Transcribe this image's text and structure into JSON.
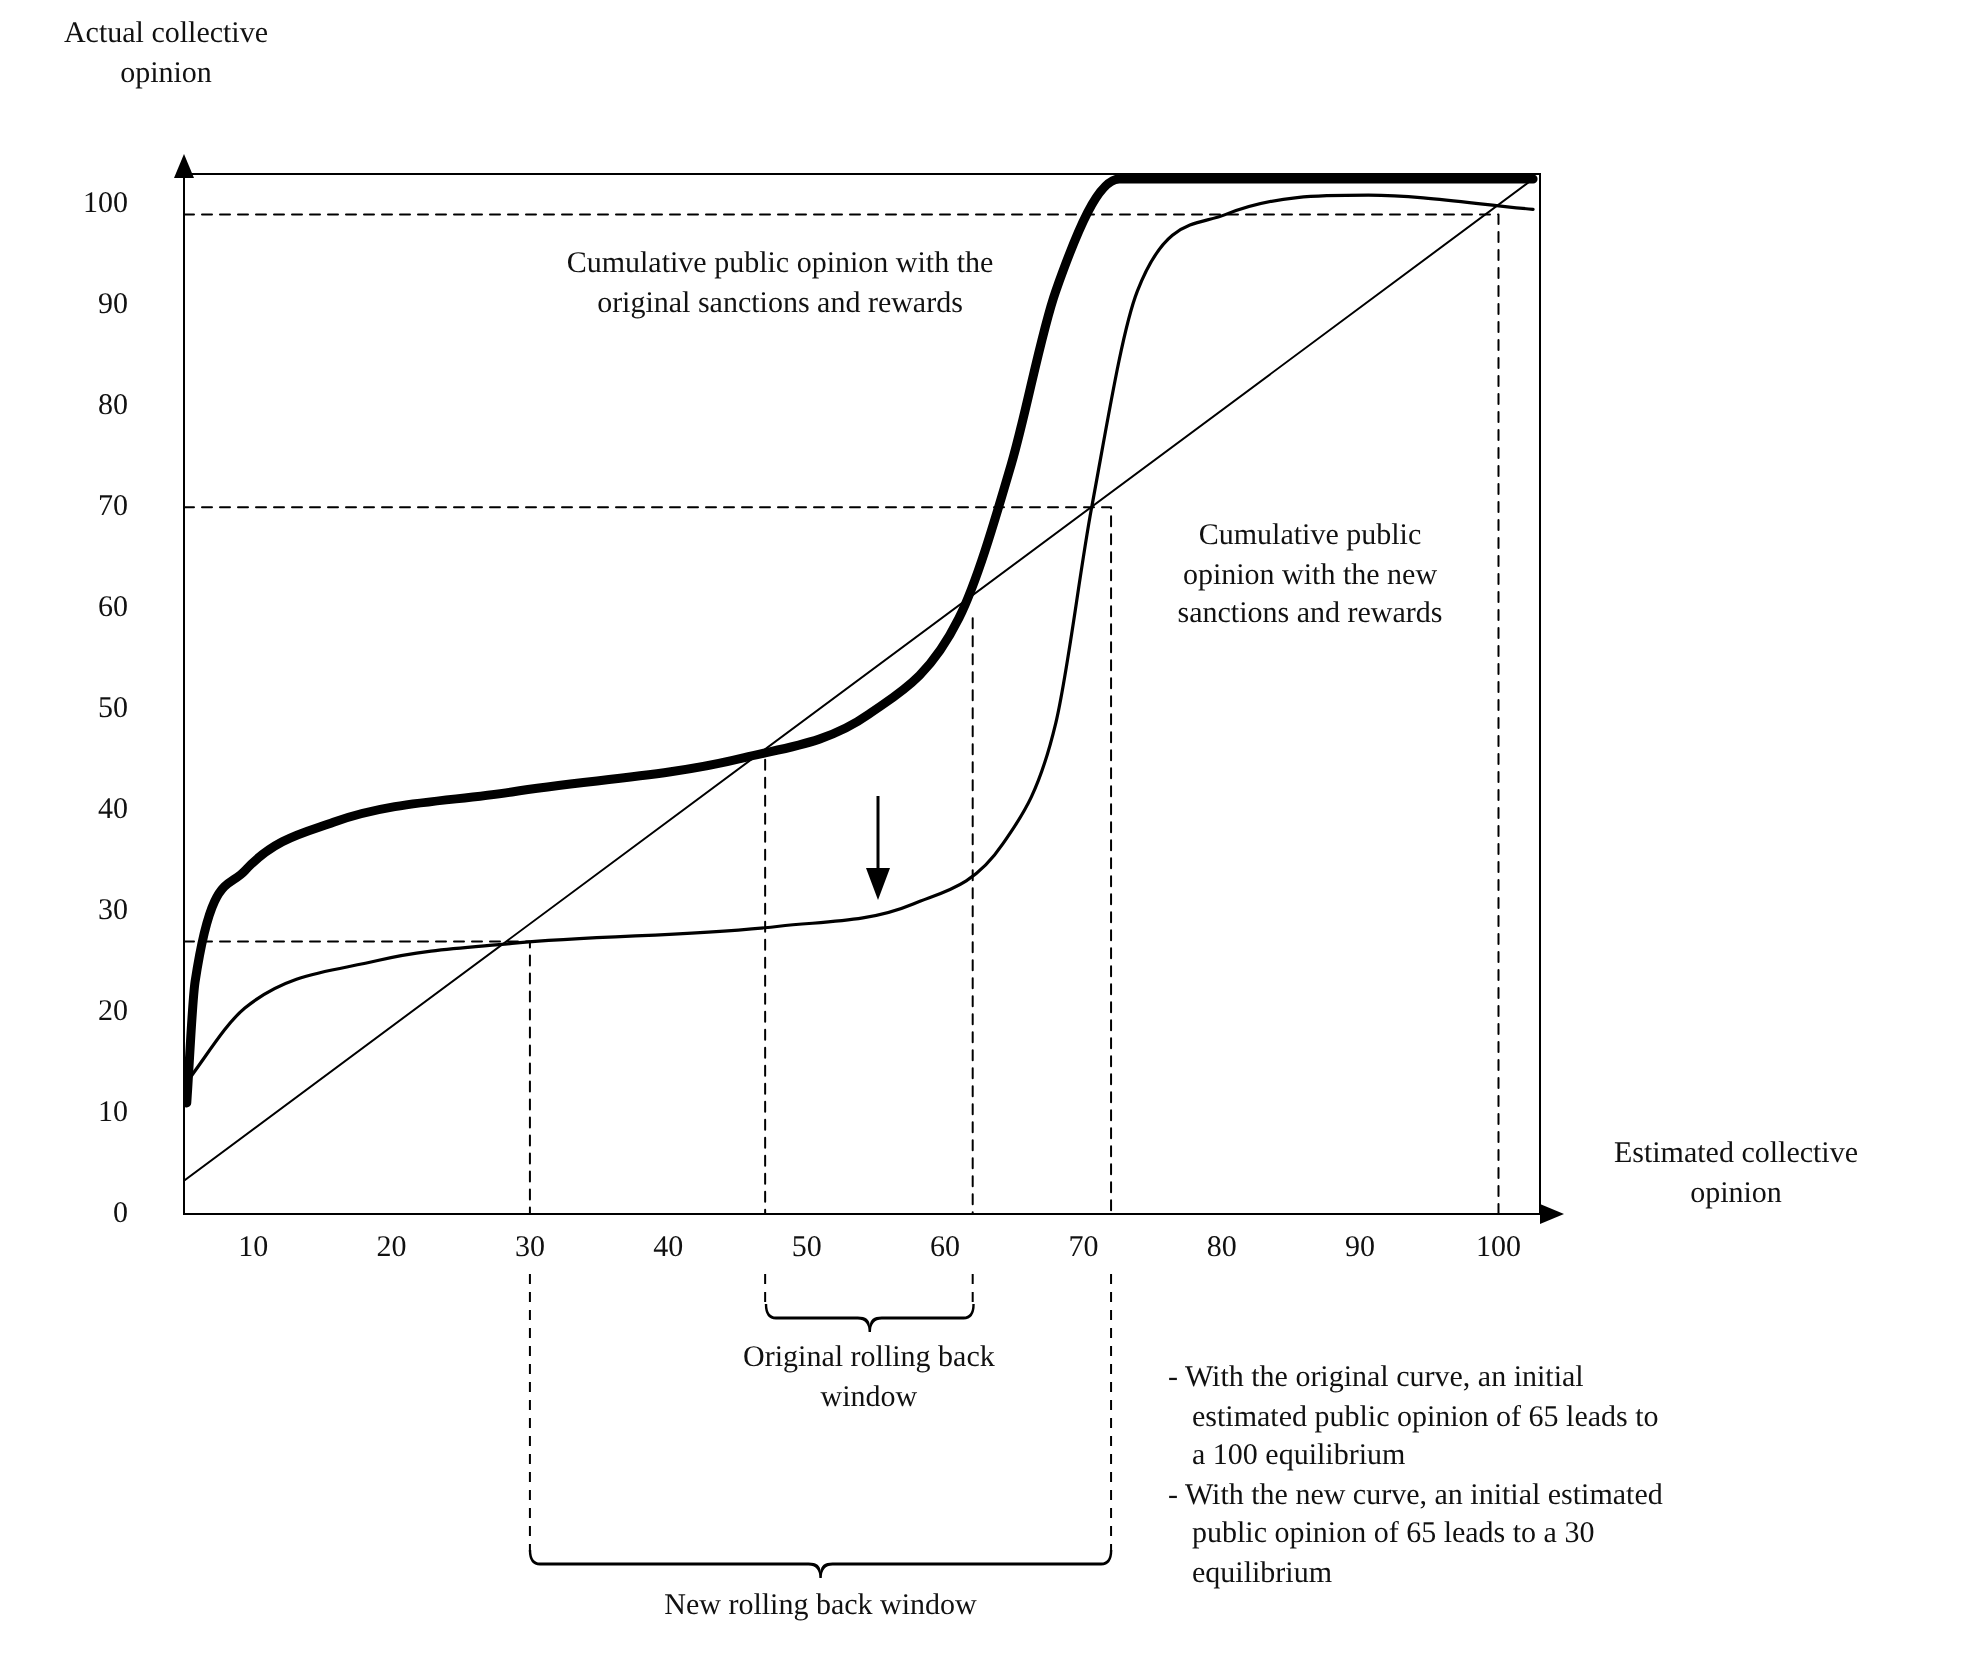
{
  "chart_data": {
    "type": "line",
    "xlabel": "Estimated collective opinion",
    "ylabel": "Actual collective opinion",
    "xlim": [
      5,
      103
    ],
    "xticks": [
      10,
      20,
      30,
      40,
      50,
      60,
      70,
      80,
      90,
      100
    ],
    "ylim": [
      0,
      103
    ],
    "yticks": [
      0,
      10,
      20,
      30,
      40,
      50,
      60,
      70,
      80,
      90,
      100
    ],
    "grid": false,
    "legend": false,
    "marker": "none",
    "series": [
      {
        "name": "Cumulative public opinion with the original sanctions and rewards",
        "color": "#000000",
        "x": [
          5.2,
          5.8,
          9.4,
          15.8,
          28.7,
          45.5,
          54.5,
          61,
          64.8,
          68,
          72.6,
          102.5
        ],
        "values": [
          11,
          23,
          34,
          38.8,
          41.8,
          45.2,
          49.5,
          59,
          74.3,
          91.4,
          102.5,
          102.5
        ]
      },
      {
        "name": "Cumulative public opinion with the new sanctions and rewards",
        "color": "#000000",
        "x": [
          5,
          9.4,
          19,
          28.7,
          48,
          57.7,
          64.2,
          68,
          70.6,
          73.9,
          80.3,
          90.6,
          102.5
        ],
        "values": [
          12.7,
          20.4,
          25.1,
          26.8,
          28.5,
          30.7,
          36.7,
          48.6,
          70,
          91.4,
          99,
          100.9,
          99.5
        ]
      },
      {
        "color": "#000000",
        "x": [
          5,
          102.5
        ],
        "values": [
          3.3,
          102.5
        ]
      },
      {
        "color": "#000000",
        "line_style": "dashed",
        "x": [
          5,
          30,
          30
        ],
        "values": [
          27,
          27,
          0
        ]
      },
      {
        "color": "#000000",
        "line_style": "dashed",
        "x": [
          47,
          47
        ],
        "values": [
          45,
          0
        ]
      },
      {
        "color": "#000000",
        "line_style": "dashed",
        "x": [
          62,
          62
        ],
        "values": [
          59,
          0
        ]
      },
      {
        "color": "#000000",
        "line_style": "dashed",
        "x": [
          5,
          72,
          72
        ],
        "values": [
          70,
          70,
          0
        ]
      },
      {
        "color": "#000000",
        "line_style": "dashed",
        "x": [
          5,
          100,
          100
        ],
        "values": [
          99,
          99,
          0
        ]
      }
    ],
    "annotations": [
      "Original rolling back window",
      "New rolling back window",
      "- With the original curve, an initial estimated public opinion of 65 leads to a 100 equilibrium",
      "- With the new curve, an initial estimated public opinion of 65 leads to a 30 equilibrium"
    ]
  }
}
